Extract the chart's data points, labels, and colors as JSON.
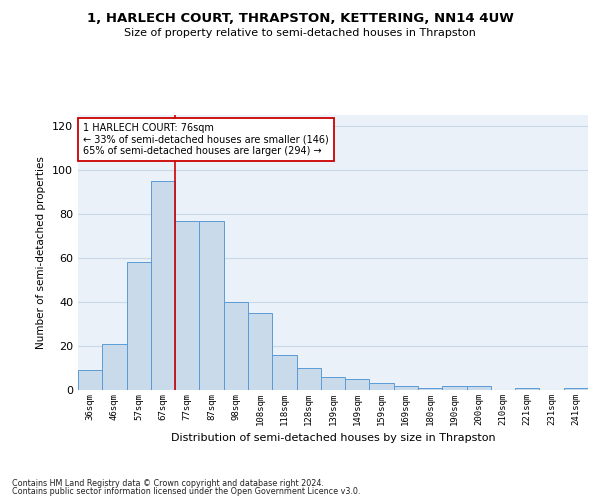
{
  "title_line1": "1, HARLECH COURT, THRAPSTON, KETTERING, NN14 4UW",
  "title_line2": "Size of property relative to semi-detached houses in Thrapston",
  "xlabel": "Distribution of semi-detached houses by size in Thrapston",
  "ylabel": "Number of semi-detached properties",
  "categories": [
    "36sqm",
    "46sqm",
    "57sqm",
    "67sqm",
    "77sqm",
    "87sqm",
    "98sqm",
    "108sqm",
    "118sqm",
    "128sqm",
    "139sqm",
    "149sqm",
    "159sqm",
    "169sqm",
    "180sqm",
    "190sqm",
    "200sqm",
    "210sqm",
    "221sqm",
    "231sqm",
    "241sqm"
  ],
  "values": [
    9,
    21,
    58,
    95,
    77,
    77,
    40,
    35,
    16,
    10,
    6,
    5,
    3,
    2,
    1,
    2,
    2,
    0,
    1,
    0,
    1
  ],
  "bar_color": "#c9daea",
  "bar_edge_color": "#5b9bd5",
  "highlight_bar_index": 4,
  "highlight_line_color": "#cc0000",
  "annotation_text": "1 HARLECH COURT: 76sqm\n← 33% of semi-detached houses are smaller (146)\n65% of semi-detached houses are larger (294) →",
  "annotation_box_color": "white",
  "annotation_box_edge": "#cc0000",
  "ylim": [
    0,
    125
  ],
  "yticks": [
    0,
    20,
    40,
    60,
    80,
    100,
    120
  ],
  "footnote_line1": "Contains HM Land Registry data © Crown copyright and database right 2024.",
  "footnote_line2": "Contains public sector information licensed under the Open Government Licence v3.0.",
  "background_color": "#eaf1f8",
  "grid_color": "#c8d8e8"
}
